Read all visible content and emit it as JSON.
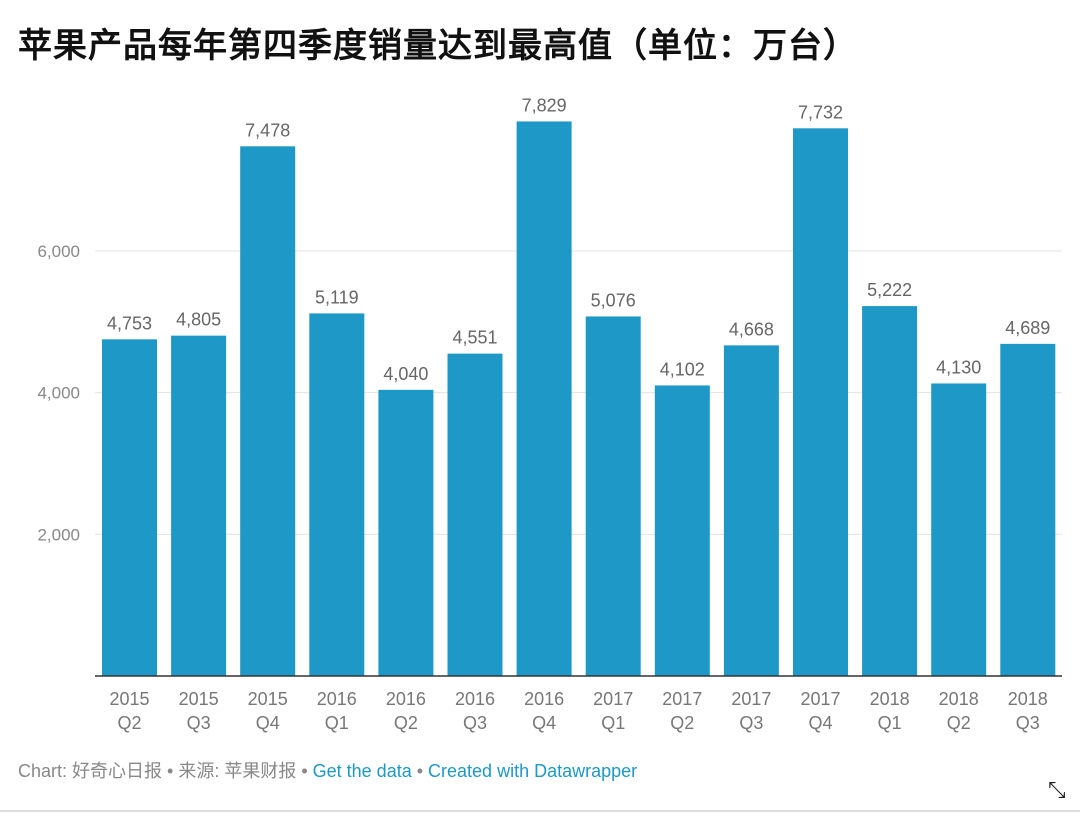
{
  "chart_data": {
    "type": "bar",
    "title": "苹果产品每年第四季度销量达到最高值（单位：万台）",
    "categories": [
      [
        "2015",
        "Q2"
      ],
      [
        "2015",
        "Q3"
      ],
      [
        "2015",
        "Q4"
      ],
      [
        "2016",
        "Q1"
      ],
      [
        "2016",
        "Q2"
      ],
      [
        "2016",
        "Q3"
      ],
      [
        "2016",
        "Q4"
      ],
      [
        "2017",
        "Q1"
      ],
      [
        "2017",
        "Q2"
      ],
      [
        "2017",
        "Q3"
      ],
      [
        "2017",
        "Q4"
      ],
      [
        "2018",
        "Q1"
      ],
      [
        "2018",
        "Q2"
      ],
      [
        "2018",
        "Q3"
      ]
    ],
    "values": [
      4753,
      4805,
      7478,
      5119,
      4040,
      4551,
      7829,
      5076,
      4102,
      4668,
      7732,
      5222,
      4130,
      4689
    ],
    "value_labels": [
      "4,753",
      "4,805",
      "7,478",
      "5,119",
      "4,040",
      "4,551",
      "7,829",
      "5,076",
      "4,102",
      "4,668",
      "7,732",
      "5,222",
      "4,130",
      "4,689"
    ],
    "yticks": [
      2000,
      4000,
      6000
    ],
    "ytick_labels": [
      "2,000",
      "4,000",
      "6,000"
    ],
    "ylim": [
      0,
      8000
    ],
    "grid": true,
    "xlabel": "",
    "ylabel": "",
    "bar_color": "#1d98c7"
  },
  "footer": {
    "credit": "Chart: 好奇心日报 • 来源: 苹果财报 • ",
    "get_data": "Get the data",
    "sep": " • ",
    "created_with": "Created with Datawrapper"
  },
  "icons": {
    "resize": "resize-arrow-icon"
  }
}
